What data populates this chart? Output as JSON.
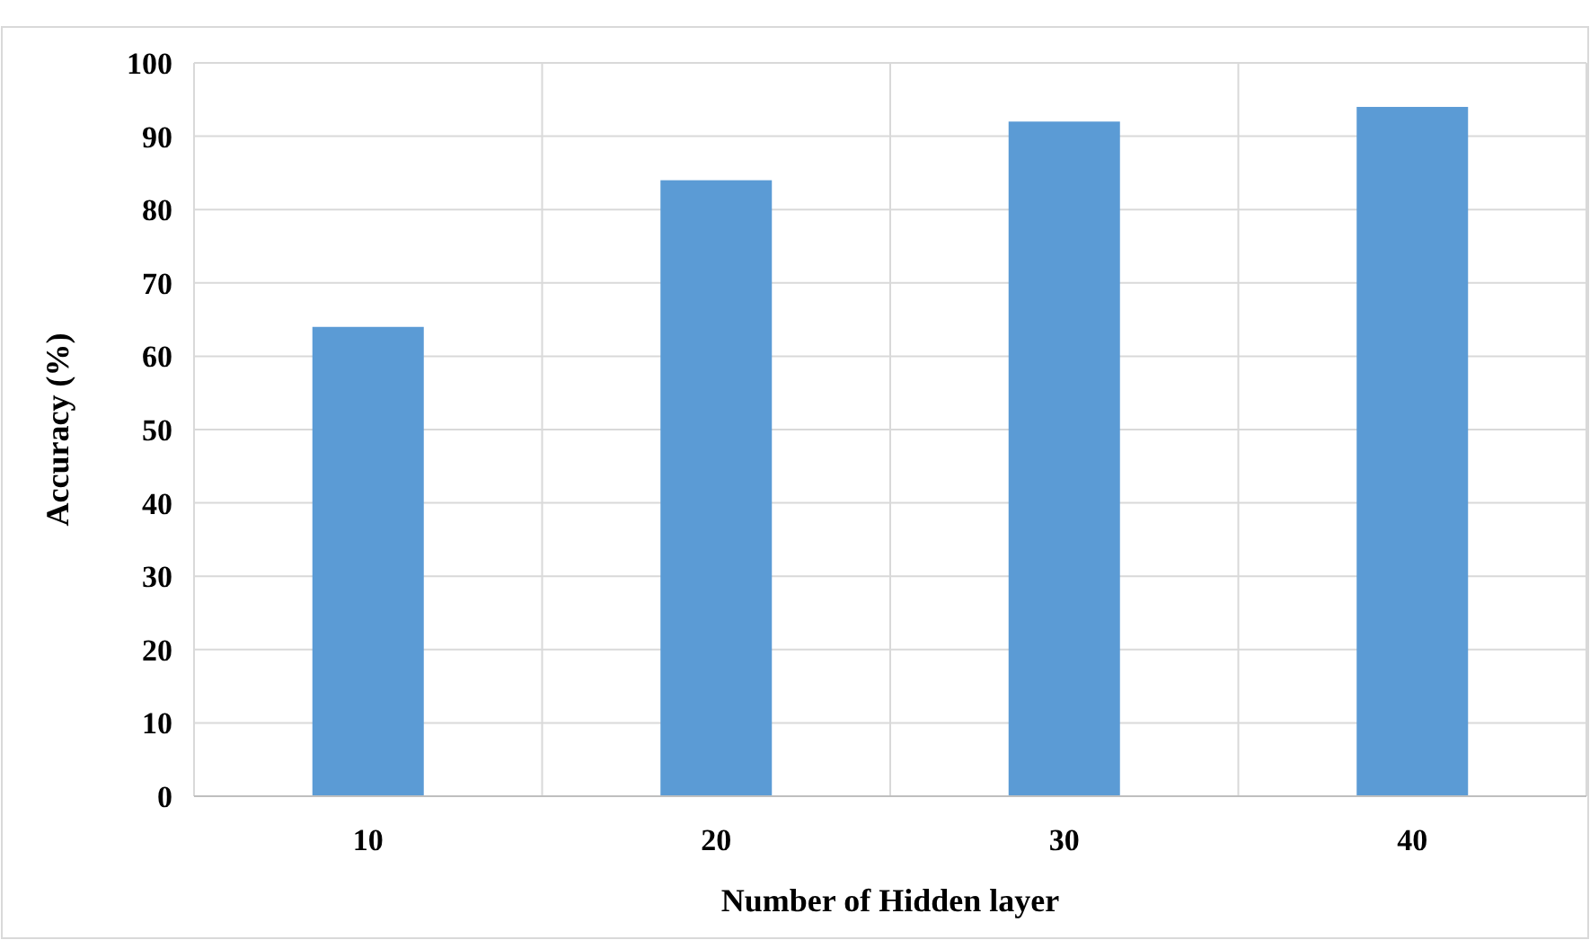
{
  "chart_data": {
    "type": "bar",
    "xlabel": "Number of Hidden layer",
    "ylabel": "Accuracy (%)",
    "categories": [
      "10",
      "20",
      "30",
      "40"
    ],
    "values": [
      64,
      84,
      92,
      94
    ],
    "color": "#5b9bd5",
    "ylim": [
      0,
      100
    ],
    "yticks": [
      0,
      10,
      20,
      30,
      40,
      50,
      60,
      70,
      80,
      90,
      100
    ],
    "grid": true
  }
}
